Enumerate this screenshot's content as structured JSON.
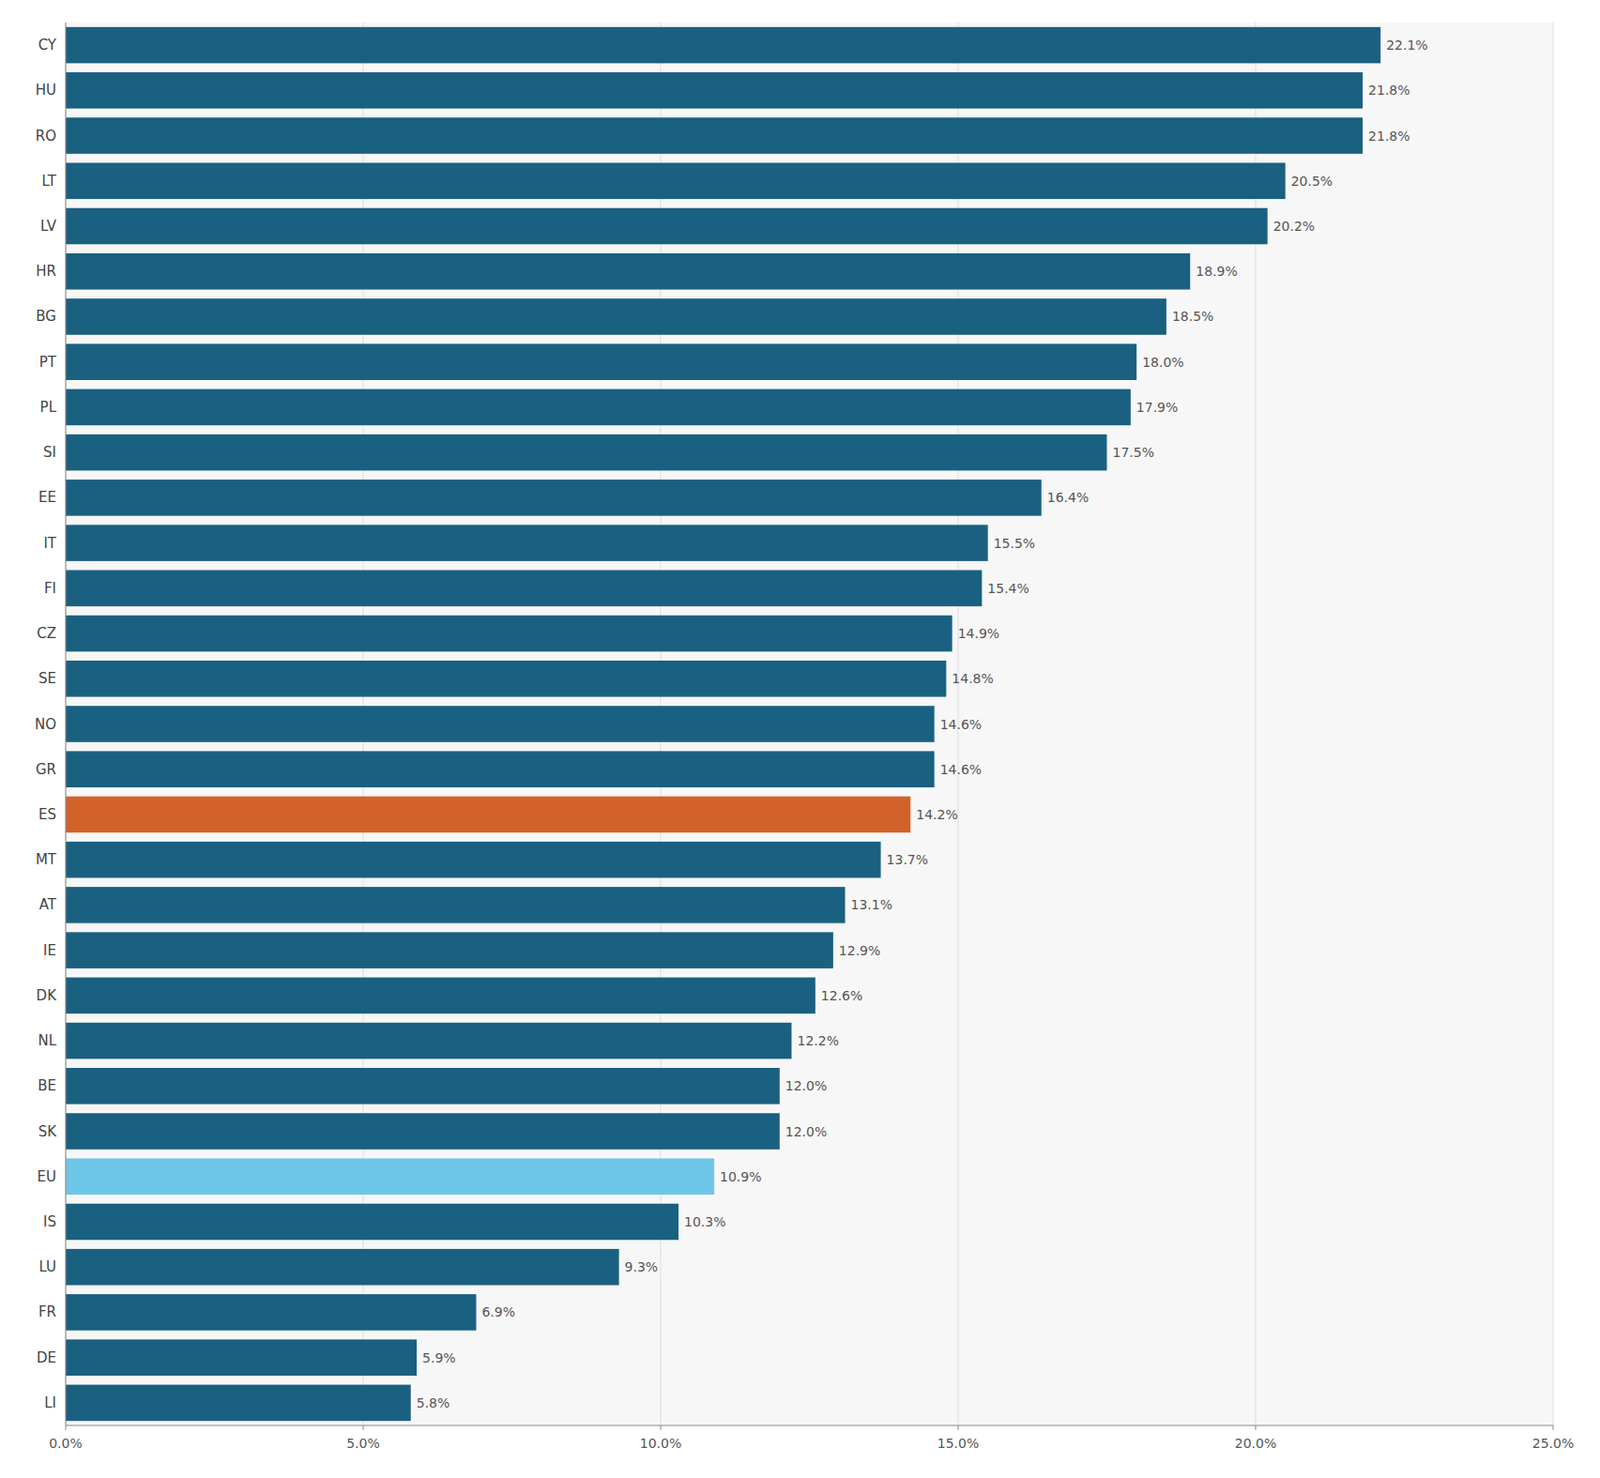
{
  "chart_data": {
    "type": "bar",
    "orientation": "horizontal",
    "categories": [
      "CY",
      "HU",
      "RO",
      "LT",
      "LV",
      "HR",
      "BG",
      "PT",
      "PL",
      "SI",
      "EE",
      "IT",
      "FI",
      "CZ",
      "SE",
      "NO",
      "GR",
      "ES",
      "MT",
      "AT",
      "IE",
      "DK",
      "NL",
      "BE",
      "SK",
      "EU",
      "IS",
      "LU",
      "FR",
      "DE",
      "LI"
    ],
    "values": [
      22.1,
      21.8,
      21.8,
      20.5,
      20.2,
      18.9,
      18.5,
      18.0,
      17.9,
      17.5,
      16.4,
      15.5,
      15.4,
      14.9,
      14.8,
      14.6,
      14.6,
      14.2,
      13.7,
      13.1,
      12.9,
      12.6,
      12.2,
      12.0,
      12.0,
      10.9,
      10.3,
      9.3,
      6.9,
      5.9,
      5.8
    ],
    "value_labels": [
      "22.1%",
      "21.8%",
      "21.8%",
      "20.5%",
      "20.2%",
      "18.9%",
      "18.5%",
      "18.0%",
      "17.9%",
      "17.5%",
      "16.4%",
      "15.5%",
      "15.4%",
      "14.9%",
      "14.8%",
      "14.6%",
      "14.6%",
      "14.2%",
      "13.7%",
      "13.1%",
      "12.9%",
      "12.6%",
      "12.2%",
      "12.0%",
      "12.0%",
      "10.9%",
      "10.3%",
      "9.3%",
      "6.9%",
      "5.9%",
      "5.8%"
    ],
    "colors": [
      "#1a6080",
      "#1a6080",
      "#1a6080",
      "#1a6080",
      "#1a6080",
      "#1a6080",
      "#1a6080",
      "#1a6080",
      "#1a6080",
      "#1a6080",
      "#1a6080",
      "#1a6080",
      "#1a6080",
      "#1a6080",
      "#1a6080",
      "#1a6080",
      "#1a6080",
      "#d2622a",
      "#1a6080",
      "#1a6080",
      "#1a6080",
      "#1a6080",
      "#1a6080",
      "#1a6080",
      "#1a6080",
      "#6ec6e8",
      "#1a6080",
      "#1a6080",
      "#1a6080",
      "#1a6080",
      "#1a6080"
    ],
    "xlim": [
      0,
      25.0
    ],
    "xticks": [
      {
        "value": 0,
        "label": "0.0%"
      },
      {
        "value": 5.0,
        "label": "5.0%"
      },
      {
        "value": 10.0,
        "label": "10.0%"
      },
      {
        "value": 15.0,
        "label": "15.0%"
      },
      {
        "value": 20.0,
        "label": "20.0%"
      },
      {
        "value": 25.0,
        "label": "25.0%"
      }
    ],
    "grid": true,
    "data_labels": true
  }
}
